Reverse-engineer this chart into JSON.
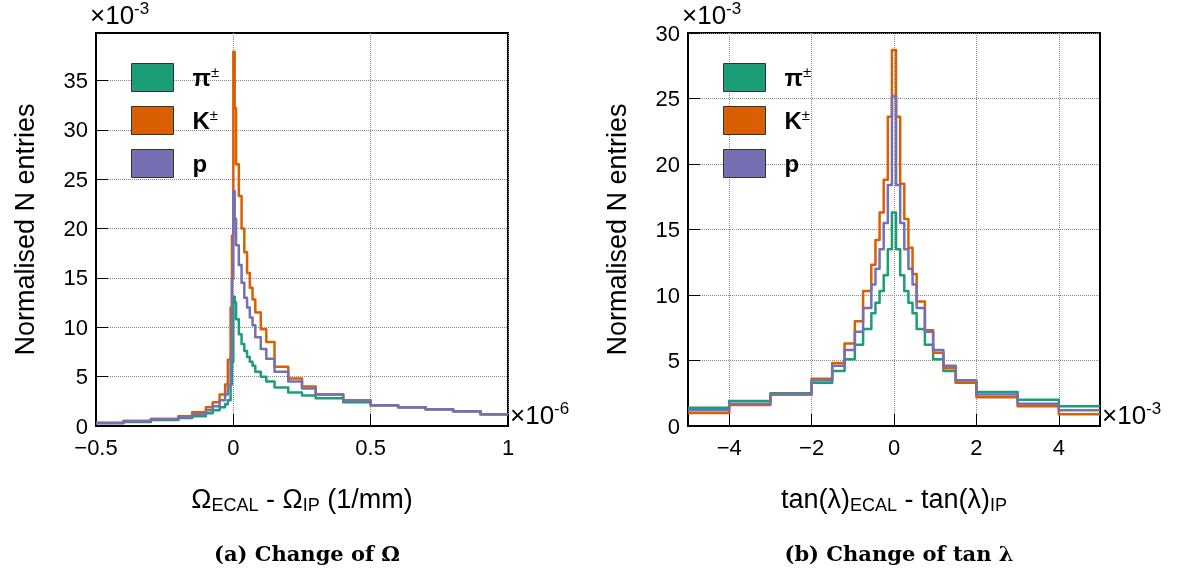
{
  "chart_data": [
    {
      "type": "histogram",
      "title": "(a) Change of Ω",
      "xlabel": "Ω$_{ECAL}$ - Ω$_{IP}$ (1/mm)",
      "ylabel": "Normalised N entries",
      "annotations": [
        "×10$^{-3}$",
        "×10$^{-6}$"
      ],
      "bins": [
        -0.5,
        -0.4,
        -0.3,
        -0.2,
        -0.15,
        -0.1,
        -0.075,
        -0.05,
        -0.03,
        -0.02,
        -0.01,
        -0.005,
        0,
        0.005,
        0.01,
        0.02,
        0.03,
        0.04,
        0.05,
        0.06,
        0.07,
        0.08,
        0.1,
        0.12,
        0.15,
        0.2,
        0.25,
        0.3,
        0.4,
        0.5,
        0.6,
        0.7,
        0.8,
        0.9,
        1.0
      ],
      "series": [
        {
          "name": "π$^{±}$",
          "color": "#1b9e77",
          "values": [
            0.3,
            0.4,
            0.6,
            0.8,
            1.0,
            1.3,
            1.6,
            1.9,
            2.2,
            2.6,
            4.2,
            6.5,
            13.1,
            12.5,
            10.8,
            9.3,
            8.3,
            7.6,
            7.0,
            6.5,
            6.1,
            5.5,
            5.0,
            4.5,
            3.9,
            3.4,
            3.1,
            2.8,
            2.4,
            2.1,
            1.9,
            1.7,
            1.5,
            1.2
          ]
        },
        {
          "name": "K$^{±}$",
          "color": "#d95f02",
          "values": [
            0.3,
            0.5,
            0.7,
            1.0,
            1.4,
            1.9,
            2.4,
            3.2,
            4.2,
            6.7,
            12,
            19.3,
            37.9,
            32.2,
            26.5,
            23.3,
            20,
            17.6,
            15.5,
            14,
            12.8,
            11.5,
            9.8,
            8.5,
            6.0,
            4.8,
            4.0,
            3.2,
            2.6,
            2.1,
            1.9,
            1.7,
            1.5,
            1.2
          ]
        },
        {
          "name": "p",
          "color": "#7570b3",
          "values": [
            0.3,
            0.5,
            0.7,
            0.9,
            1.2,
            1.6,
            2.0,
            2.6,
            3.2,
            4.0,
            6.9,
            14.9,
            23.8,
            21,
            18.3,
            16.3,
            14.5,
            13,
            12,
            11,
            10.2,
            9,
            7.8,
            6.8,
            5.5,
            4.5,
            3.8,
            3.2,
            2.6,
            2.1,
            1.9,
            1.7,
            1.5,
            1.2
          ]
        }
      ],
      "xlim": [
        -0.5,
        1
      ],
      "xticks": [
        -0.5,
        0,
        0.5,
        1
      ],
      "ylim": [
        0,
        39.8
      ],
      "yticks": [
        0,
        5,
        10,
        15,
        20,
        25,
        30,
        35
      ],
      "grid": true,
      "legend": "top left"
    },
    {
      "type": "histogram",
      "title": "(b) Change of tan λ",
      "xlabel": "tan(λ)$_{ECAL}$ - tan(λ)$_{IP}$",
      "ylabel": "Normalised N entries",
      "annotations": [
        "×10$^{-3}$",
        "×10$^{-3}$"
      ],
      "bins": [
        -5,
        -4,
        -3,
        -2,
        -1.5,
        -1.2,
        -0.95,
        -0.75,
        -0.55,
        -0.45,
        -0.35,
        -0.25,
        -0.15,
        -0.05,
        0.05,
        0.15,
        0.25,
        0.35,
        0.45,
        0.55,
        0.75,
        0.95,
        1.2,
        1.5,
        2,
        3,
        4,
        5
      ],
      "series": [
        {
          "name": "π$^{±}$",
          "color": "#1b9e77",
          "values": [
            1.4,
            1.9,
            2.5,
            3.3,
            4.2,
            5.1,
            6.2,
            7.4,
            8.6,
            9.4,
            10.3,
            11.5,
            13.5,
            16.3,
            13.5,
            11.5,
            10.3,
            9.4,
            8.6,
            7.4,
            6.2,
            5.1,
            4.2,
            3.3,
            2.6,
            2.0,
            1.5
          ]
        },
        {
          "name": "K$^{±}$",
          "color": "#d95f02",
          "values": [
            1.0,
            1.6,
            2.4,
            3.6,
            4.8,
            6.3,
            8.0,
            10.3,
            12.3,
            14.2,
            16.3,
            18.8,
            23.6,
            28.7,
            23.6,
            18.5,
            15.8,
            13.6,
            11.6,
            9.5,
            7.3,
            5.6,
            4.4,
            3.3,
            2.2,
            1.5,
            0.9
          ]
        },
        {
          "name": "p",
          "color": "#7570b3",
          "values": [
            1.2,
            1.7,
            2.4,
            3.5,
            4.6,
            5.8,
            7.2,
            9.0,
            10.8,
            12,
            13.5,
            15.5,
            18.4,
            25.2,
            18.4,
            15.5,
            13.5,
            12,
            10.8,
            9.0,
            7.2,
            5.8,
            4.6,
            3.5,
            2.4,
            1.7,
            1.2
          ]
        }
      ],
      "xlim": [
        -5,
        5
      ],
      "xticks": [
        -4,
        -2,
        0,
        2,
        4
      ],
      "ylim": [
        0,
        30
      ],
      "yticks": [
        0,
        5,
        10,
        15,
        20,
        25,
        30
      ],
      "grid": true,
      "legend": "top left"
    }
  ]
}
